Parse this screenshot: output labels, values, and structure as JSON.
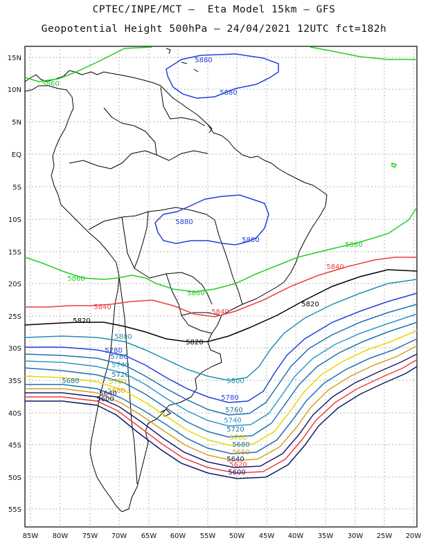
{
  "title": {
    "line1": "CPTEC/INPE/MCT –  Eta Model 15km – GFS",
    "line2": "Geopotential Height 500hPa – 24/04/2021 12UTC fct=182h"
  },
  "map": {
    "lat_labels": [
      "15N",
      "10N",
      "5N",
      "EQ",
      "5S",
      "10S",
      "15S",
      "20S",
      "25S",
      "30S",
      "35S",
      "40S",
      "45S",
      "50S",
      "55S"
    ],
    "lon_labels": [
      "85W",
      "80W",
      "75W",
      "70W",
      "65W",
      "60W",
      "55W",
      "50W",
      "45W",
      "40W",
      "35W",
      "30W",
      "25W",
      "20W"
    ],
    "contours": [
      {
        "name": "5880",
        "color": "#1f3fdc",
        "labels": [
          "5880",
          "5880",
          "5880",
          "5880"
        ]
      },
      {
        "name": "5860",
        "color": "#22cc22",
        "labels": [
          "5860",
          "5860",
          "5860",
          "5860"
        ]
      },
      {
        "name": "5840",
        "color": "#ee3b3b",
        "labels": [
          "5840",
          "5840",
          "5840"
        ]
      },
      {
        "name": "5820",
        "color": "#000000",
        "labels": [
          "5820",
          "5820",
          "5820"
        ]
      },
      {
        "name": "5800",
        "color": "#1f8fb0",
        "labels": [
          "5800",
          "5800"
        ]
      },
      {
        "name": "5780",
        "color": "#1f3fdc",
        "labels": [
          "5780",
          "5780"
        ]
      },
      {
        "name": "5760",
        "color": "#1f6fb0",
        "labels": [
          "5760",
          "5760"
        ]
      },
      {
        "name": "5740",
        "color": "#2a9ac8",
        "labels": [
          "5740",
          "5740"
        ]
      },
      {
        "name": "5720",
        "color": "#1f6fb0",
        "labels": [
          "5720",
          "5720"
        ]
      },
      {
        "name": "5700",
        "color": "#e8d800",
        "labels": [
          "5700",
          "5700"
        ]
      },
      {
        "name": "5680",
        "color": "#1f6fb0",
        "labels": [
          "5680",
          "5680"
        ]
      },
      {
        "name": "5660",
        "color": "#d4a020",
        "labels": [
          "5660",
          "5660"
        ]
      },
      {
        "name": "5640",
        "color": "#1a1a6a",
        "labels": [
          "5640",
          "5640"
        ]
      },
      {
        "name": "5620",
        "color": "#ee3b3b",
        "labels": [
          "5620"
        ]
      },
      {
        "name": "5600",
        "color": "#0a1a60",
        "labels": [
          "5600",
          "5600"
        ]
      }
    ]
  }
}
